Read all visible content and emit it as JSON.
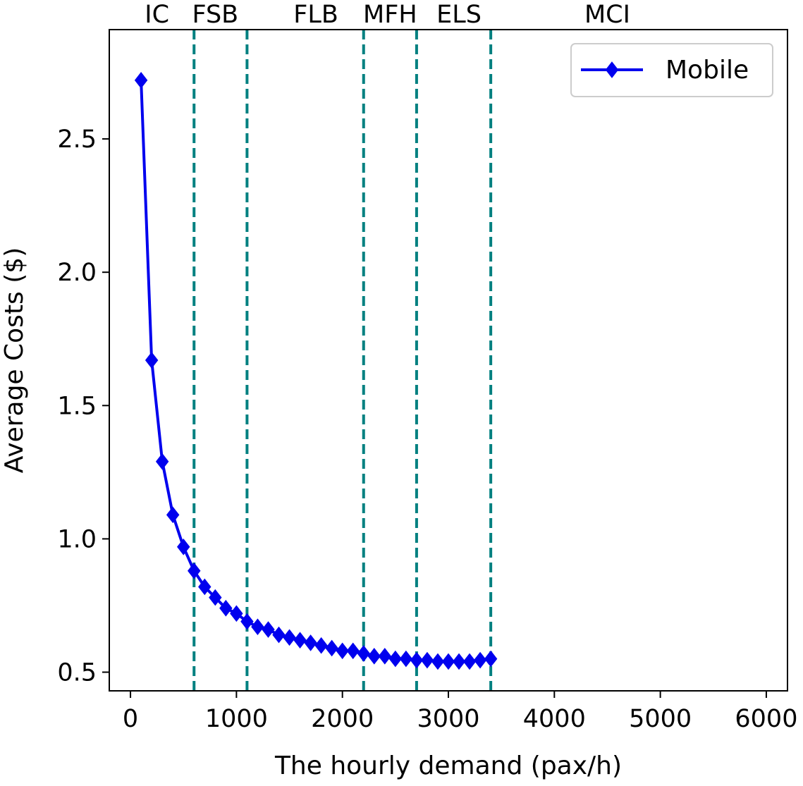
{
  "chart_data": {
    "type": "line",
    "title": "",
    "xlabel": "The hourly demand (pax/h)",
    "ylabel": "Average Costs ($)",
    "xlim": [
      -200,
      6200
    ],
    "ylim": [
      0.43,
      2.91
    ],
    "xticks": [
      0,
      1000,
      2000,
      3000,
      4000,
      5000,
      6000
    ],
    "xtick_labels": [
      "0",
      "1000",
      "2000",
      "3000",
      "4000",
      "5000",
      "6000"
    ],
    "yticks": [
      0.5,
      1.0,
      1.5,
      2.0,
      2.5
    ],
    "ytick_labels": [
      "0.5",
      "1.0",
      "1.5",
      "2.0",
      "2.5"
    ],
    "grid": false,
    "legend_position": "top-right",
    "series": [
      {
        "name": "Mobile",
        "color": "#0000ee",
        "marker": "diamond",
        "x": [
          100,
          200,
          300,
          400,
          500,
          600,
          700,
          800,
          900,
          1000,
          1100,
          1200,
          1300,
          1400,
          1500,
          1600,
          1700,
          1800,
          1900,
          2000,
          2100,
          2200,
          2300,
          2400,
          2500,
          2600,
          2700,
          2800,
          2900,
          3000,
          3100,
          3200,
          3300,
          3400
        ],
        "y": [
          2.72,
          1.67,
          1.29,
          1.09,
          0.97,
          0.88,
          0.82,
          0.78,
          0.74,
          0.72,
          0.69,
          0.67,
          0.66,
          0.64,
          0.63,
          0.62,
          0.61,
          0.6,
          0.59,
          0.58,
          0.58,
          0.57,
          0.56,
          0.56,
          0.55,
          0.55,
          0.545,
          0.545,
          0.54,
          0.54,
          0.54,
          0.54,
          0.545,
          0.55
        ]
      }
    ],
    "vlines": {
      "color": "#008080",
      "style": "dashed",
      "x": [
        600,
        1100,
        2200,
        2700,
        3400
      ]
    },
    "region_labels": [
      {
        "text": "IC",
        "x": 250
      },
      {
        "text": "FSB",
        "x": 800
      },
      {
        "text": "FLB",
        "x": 1750
      },
      {
        "text": "MFH",
        "x": 2450
      },
      {
        "text": "ELS",
        "x": 3100
      },
      {
        "text": "MCI",
        "x": 4500
      }
    ]
  }
}
